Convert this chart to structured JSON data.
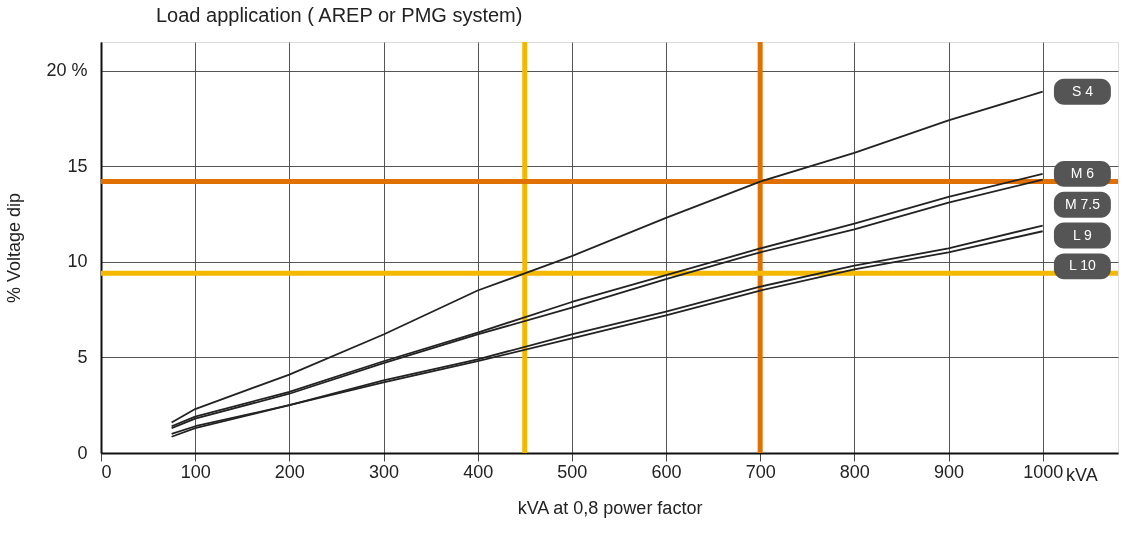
{
  "chart_data": {
    "type": "line",
    "title": "Load application ( AREP or PMG system)",
    "xlabel": "kVA at 0,8 power factor",
    "ylabel": "% Voltage dip",
    "x": [
      75,
      100,
      200,
      300,
      400,
      500,
      600,
      700,
      800,
      900,
      1000
    ],
    "series": [
      {
        "name": "S 4",
        "color": "#222222",
        "values": [
          1.6,
          2.3,
          4.1,
          6.2,
          8.5,
          10.3,
          12.3,
          14.2,
          15.7,
          17.4,
          18.9
        ]
      },
      {
        "name": "M 6",
        "color": "#222222",
        "values": [
          1.4,
          1.9,
          3.2,
          4.8,
          6.3,
          7.9,
          9.3,
          10.7,
          12.0,
          13.4,
          14.6
        ]
      },
      {
        "name": "M 7.5",
        "color": "#222222",
        "values": [
          1.3,
          1.8,
          3.1,
          4.7,
          6.2,
          7.6,
          9.1,
          10.5,
          11.7,
          13.1,
          14.3
        ]
      },
      {
        "name": "L 9",
        "color": "#222222",
        "values": [
          1.0,
          1.4,
          2.5,
          3.8,
          4.9,
          6.2,
          7.4,
          8.7,
          9.8,
          10.7,
          11.9
        ]
      },
      {
        "name": "L 10",
        "color": "#222222",
        "values": [
          0.85,
          1.3,
          2.5,
          3.7,
          4.8,
          6.0,
          7.2,
          8.5,
          9.6,
          10.5,
          11.6
        ]
      }
    ],
    "xlim": [
      0,
      1080
    ],
    "xticks": [
      0,
      100,
      200,
      300,
      400,
      500,
      600,
      700,
      800,
      900,
      1000
    ],
    "ylim": [
      0,
      21.5
    ],
    "yticks": [
      0,
      5,
      10,
      15,
      {
        "value": 20,
        "label": "20 %"
      }
    ],
    "ref_lines": [
      {
        "axis": "x",
        "value": 450,
        "color": "#f5b800"
      },
      {
        "axis": "x",
        "value": 700,
        "color": "#e07000"
      },
      {
        "axis": "y",
        "value": 9.4,
        "color": "#f5b800"
      },
      {
        "axis": "y",
        "value": 14.2,
        "color": "#e07000"
      }
    ],
    "annotations": [
      "kVA"
    ],
    "grid": true,
    "marker": "none",
    "line_style": "solid"
  }
}
